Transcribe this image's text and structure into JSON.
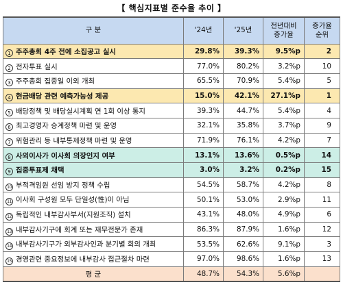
{
  "title": "【 핵심지표별 준수율 추이 】",
  "headers": {
    "item": "구 분",
    "y24": "'24년",
    "y25": "'25년",
    "yoy_l1": "전년대비",
    "yoy_l2": "증가율",
    "rank_l1": "증가율",
    "rank_l2": "순위"
  },
  "rows": [
    {
      "no": "1",
      "label": "주주총회 4주 전에 소집공고 실시",
      "y24": "29.8%",
      "y25": "39.3%",
      "yoy": "9.5%p",
      "rank": "2",
      "hl": "yellow"
    },
    {
      "no": "2",
      "label": "전자투표 실시",
      "y24": "77.0%",
      "y25": "80.2%",
      "yoy": "3.2%p",
      "rank": "10",
      "hl": ""
    },
    {
      "no": "3",
      "label": "주주총회 집중일 이외 개최",
      "y24": "65.5%",
      "y25": "70.9%",
      "yoy": "5.4%p",
      "rank": "5",
      "hl": ""
    },
    {
      "no": "4",
      "label": "현금배당 관련 예측가능성 제공",
      "y24": "15.0%",
      "y25": "42.1%",
      "yoy": "27.1%p",
      "rank": "1",
      "hl": "yellow"
    },
    {
      "no": "5",
      "label": "배당정책 및 배당실시계획 연 1회 이상 통지",
      "y24": "39.3%",
      "y25": "44.7%",
      "yoy": "5.4%p",
      "rank": "4",
      "hl": ""
    },
    {
      "no": "6",
      "label": "최고경영자 승계정책 마련 및 운영",
      "y24": "32.1%",
      "y25": "35.8%",
      "yoy": "3.7%p",
      "rank": "9",
      "hl": ""
    },
    {
      "no": "7",
      "label": "위험관리 등 내부통제정책 마련 및 운영",
      "y24": "71.9%",
      "y25": "76.1%",
      "yoy": "4.2%p",
      "rank": "7",
      "hl": ""
    },
    {
      "no": "8",
      "label": "사외이사가 이사회 의장인지 여부",
      "y24": "13.1%",
      "y25": "13.6%",
      "yoy": "0.5%p",
      "rank": "14",
      "hl": "green"
    },
    {
      "no": "9",
      "label": "집중투표제 채택",
      "y24": "3.0%",
      "y25": "3.2%",
      "yoy": "0.2%p",
      "rank": "15",
      "hl": "green"
    },
    {
      "no": "10",
      "label": "부적격임원 선임 방지 정책 수립",
      "y24": "54.5%",
      "y25": "58.7%",
      "yoy": "4.2%p",
      "rank": "8",
      "hl": ""
    },
    {
      "no": "11",
      "label": "이사회 구성원 모두 단일성(性)이 아님",
      "y24": "50.1%",
      "y25": "53.0%",
      "yoy": "2.9%p",
      "rank": "11",
      "hl": ""
    },
    {
      "no": "12",
      "label": "독립적인 내부감사부서(지원조직) 설치",
      "y24": "43.1%",
      "y25": "48.0%",
      "yoy": "4.9%p",
      "rank": "6",
      "hl": ""
    },
    {
      "no": "13",
      "label": "내부감사기구에 회계 또는 재무전문가 존재",
      "y24": "86.3%",
      "y25": "87.9%",
      "yoy": "1.6%p",
      "rank": "12",
      "hl": ""
    },
    {
      "no": "14",
      "label": "내부감사기구가 외부감사인과 분기별 회의 개최",
      "y24": "53.5%",
      "y25": "62.6%",
      "yoy": "9.1%p",
      "rank": "3",
      "hl": ""
    },
    {
      "no": "15",
      "label": "경영관련 중요정보에 내부감사 접근절차 마련",
      "y24": "97.0%",
      "y25": "98.6%",
      "yoy": "1.6%p",
      "rank": "13",
      "hl": ""
    }
  ],
  "average": {
    "label": "평 균",
    "y24": "48.7%",
    "y25": "54.3%",
    "yoy": "5.6%p",
    "rank": ""
  }
}
